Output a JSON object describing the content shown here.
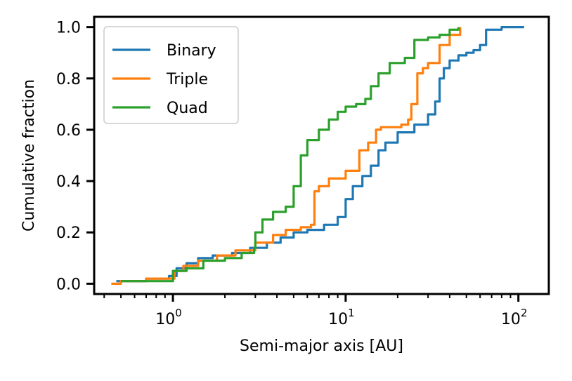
{
  "chart_data": {
    "type": "line",
    "title": "",
    "xlabel": "Semi-major axis [AU]",
    "ylabel": "Cumulative fraction",
    "xscale": "log",
    "xlim": [
      0.35,
      150
    ],
    "ylim": [
      -0.04,
      1.04
    ],
    "x_ticks": [
      {
        "value": 1,
        "base": "10",
        "exp": "0"
      },
      {
        "value": 10,
        "base": "10",
        "exp": "1"
      },
      {
        "value": 100,
        "base": "10",
        "exp": "2"
      }
    ],
    "y_ticks": [
      {
        "value": 0.0,
        "label": "0.0"
      },
      {
        "value": 0.2,
        "label": "0.2"
      },
      {
        "value": 0.4,
        "label": "0.4"
      },
      {
        "value": 0.6,
        "label": "0.6"
      },
      {
        "value": 0.8,
        "label": "0.8"
      },
      {
        "value": 1.0,
        "label": "1.0"
      }
    ],
    "grid": false,
    "legend_position": "top-left",
    "series": [
      {
        "name": "Binary",
        "color": "#1f77b4",
        "x": [
          0.47,
          0.55,
          0.7,
          0.85,
          0.95,
          1.05,
          1.2,
          1.4,
          1.7,
          2.2,
          2.8,
          3.5,
          4.2,
          5.0,
          6.0,
          7.5,
          9.0,
          10.0,
          11.0,
          12.5,
          14.0,
          15.5,
          17.0,
          20.0,
          25.0,
          30.0,
          33.0,
          35.0,
          37.0,
          40.0,
          45.0,
          50.0,
          55.0,
          60.0,
          65.0,
          80.0,
          108.0
        ],
        "y": [
          0.01,
          0.01,
          0.02,
          0.02,
          0.03,
          0.06,
          0.08,
          0.1,
          0.11,
          0.12,
          0.14,
          0.16,
          0.18,
          0.2,
          0.21,
          0.23,
          0.26,
          0.33,
          0.38,
          0.42,
          0.46,
          0.52,
          0.55,
          0.59,
          0.62,
          0.66,
          0.71,
          0.8,
          0.84,
          0.87,
          0.89,
          0.9,
          0.91,
          0.93,
          0.99,
          1.0,
          1.0
        ]
      },
      {
        "name": "Triple",
        "color": "#ff7f0e",
        "x": [
          0.44,
          0.5,
          0.7,
          0.95,
          1.02,
          1.15,
          1.4,
          1.8,
          2.3,
          3.0,
          3.8,
          4.5,
          5.5,
          6.3,
          6.6,
          7.0,
          8.0,
          10.0,
          12.0,
          13.5,
          15.0,
          16.0,
          18.0,
          21.0,
          23.0,
          24.0,
          26.0,
          28.0,
          30.0,
          35.0,
          40.0,
          46.0
        ],
        "y": [
          0.0,
          0.01,
          0.02,
          0.02,
          0.05,
          0.07,
          0.09,
          0.11,
          0.13,
          0.16,
          0.19,
          0.21,
          0.22,
          0.23,
          0.36,
          0.38,
          0.41,
          0.44,
          0.52,
          0.55,
          0.6,
          0.61,
          0.61,
          0.62,
          0.64,
          0.7,
          0.82,
          0.84,
          0.86,
          0.93,
          0.97,
          1.0
        ]
      },
      {
        "name": "Quad",
        "color": "#2ca02c",
        "x": [
          0.5,
          0.7,
          1.0,
          1.2,
          1.5,
          2.0,
          2.5,
          2.95,
          3.0,
          3.3,
          3.8,
          4.5,
          5.0,
          5.5,
          6.0,
          7.0,
          8.0,
          9.0,
          10.0,
          11.5,
          13.0,
          14.0,
          15.5,
          18.0,
          22.0,
          25.0,
          30.0,
          35.0,
          40.0,
          45.0
        ],
        "y": [
          0.01,
          0.01,
          0.05,
          0.06,
          0.09,
          0.1,
          0.12,
          0.14,
          0.2,
          0.25,
          0.28,
          0.3,
          0.38,
          0.5,
          0.56,
          0.6,
          0.64,
          0.67,
          0.69,
          0.7,
          0.72,
          0.77,
          0.82,
          0.86,
          0.88,
          0.95,
          0.96,
          0.97,
          0.99,
          1.0
        ]
      }
    ]
  }
}
